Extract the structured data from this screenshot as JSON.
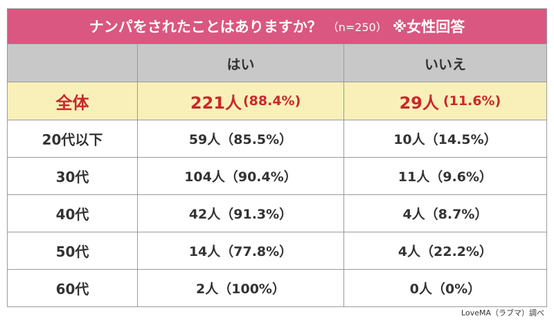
{
  "title": {
    "question": "ナンパをされたことはありますか？",
    "sample": "（n=250）",
    "note": "※女性回答"
  },
  "colors": {
    "title_bg": "#d95780",
    "header_bg": "#c8c8c8",
    "total_bg": "#f8f0b8",
    "total_text": "#c8282c"
  },
  "headers": [
    "",
    "はい",
    "いいえ"
  ],
  "total": {
    "label": "全体",
    "yes_count": "221人",
    "yes_pct": "(88.4%)",
    "no_count": "29人",
    "no_pct": "(11.6%)"
  },
  "rows": [
    {
      "label": "20代以下",
      "yes_count": "59人",
      "yes_pct": "（85.5%）",
      "no_count": "10人",
      "no_pct": "（14.5%）"
    },
    {
      "label": "30代",
      "yes_count": "104人",
      "yes_pct": "（90.4%）",
      "no_count": "11人",
      "no_pct": "　（9.6%）"
    },
    {
      "label": "40代",
      "yes_count": "42人",
      "yes_pct": "（91.3%）",
      "no_count": "4人",
      "no_pct": "　（8.7%）"
    },
    {
      "label": "50代",
      "yes_count": "14人",
      "yes_pct": "（77.8%）",
      "no_count": "4人",
      "no_pct": "（22.2%）"
    },
    {
      "label": "60代",
      "yes_count": "2人",
      "yes_pct": "　（100%）",
      "no_count": "0人",
      "no_pct": "　　（0%）"
    }
  ],
  "footer": "LoveMA（ラブマ）調べ",
  "chart_data": {
    "type": "table",
    "title": "ナンパをされたことはありますか？（n=250）※女性回答",
    "columns": [
      "",
      "はい",
      "いいえ"
    ],
    "rows": [
      [
        "全体",
        "221人 (88.4%)",
        "29人 (11.6%)"
      ],
      [
        "20代以下",
        "59人（85.5%）",
        "10人（14.5%）"
      ],
      [
        "30代",
        "104人（90.4%）",
        "11人（9.6%）"
      ],
      [
        "40代",
        "42人（91.3%）",
        "4人（8.7%）"
      ],
      [
        "50代",
        "14人（77.8%）",
        "4人（22.2%）"
      ],
      [
        "60代",
        "2人（100%）",
        "0人（0%）"
      ]
    ]
  }
}
